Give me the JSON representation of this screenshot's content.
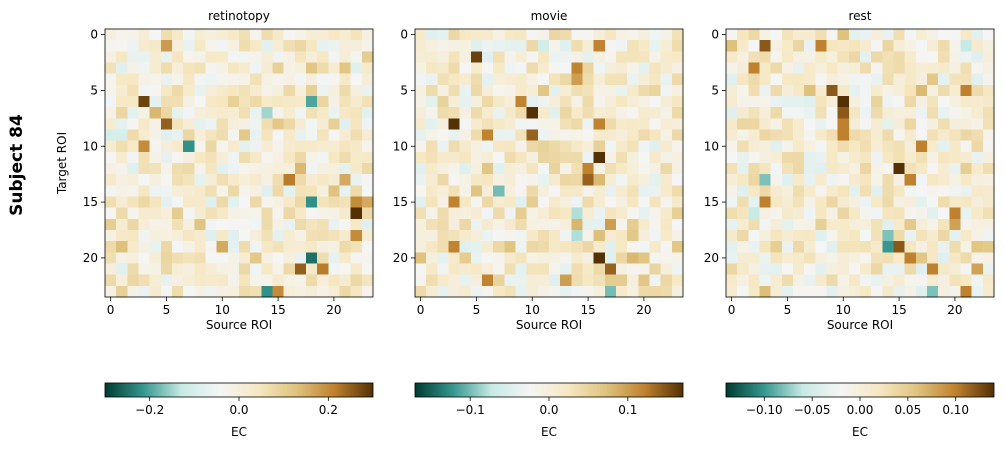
{
  "figure": {
    "suptitle": "Subject 84",
    "cmap_stops": [
      "#003c30",
      "#35978f",
      "#c7eae5",
      "#f5f5f5",
      "#f6e8c3",
      "#dfc27d",
      "#bf812d",
      "#543005"
    ]
  },
  "chart_data": [
    {
      "type": "heatmap",
      "title": "retinotopy",
      "xlabel": "Source ROI",
      "ylabel": "Target ROI",
      "x_ticks": [
        "0",
        "5",
        "10",
        "15",
        "20"
      ],
      "y_ticks": [
        "0",
        "5",
        "10",
        "15",
        "20"
      ],
      "n": 24,
      "seed": 84,
      "vmin": -0.3,
      "vmax": 0.3,
      "colorbar": {
        "label": "EC",
        "ticks": [
          "−0.2",
          "0.0",
          "0.2"
        ],
        "tick_values": [
          -0.2,
          0.0,
          0.2
        ]
      },
      "strong_cells": [
        [
          1,
          5,
          0.18
        ],
        [
          3,
          18,
          0.12
        ],
        [
          3,
          21,
          0.12
        ],
        [
          6,
          3,
          0.28
        ],
        [
          6,
          18,
          -0.2
        ],
        [
          7,
          14,
          -0.15
        ],
        [
          8,
          5,
          0.25
        ],
        [
          9,
          0,
          -0.1
        ],
        [
          9,
          1,
          -0.1
        ],
        [
          10,
          3,
          0.2
        ],
        [
          10,
          7,
          -0.22
        ],
        [
          12,
          17,
          0.14
        ],
        [
          13,
          16,
          0.22
        ],
        [
          13,
          21,
          0.16
        ],
        [
          15,
          18,
          -0.22
        ],
        [
          15,
          22,
          0.2
        ],
        [
          15,
          23,
          0.16
        ],
        [
          16,
          22,
          0.3
        ],
        [
          18,
          22,
          0.2
        ],
        [
          19,
          10,
          0.16
        ],
        [
          20,
          18,
          -0.25
        ],
        [
          21,
          17,
          0.25
        ],
        [
          21,
          19,
          0.22
        ],
        [
          23,
          14,
          -0.22
        ],
        [
          23,
          15,
          0.2
        ]
      ]
    },
    {
      "type": "heatmap",
      "title": "movie",
      "xlabel": "Source ROI",
      "ylabel": "",
      "x_ticks": [
        "0",
        "5",
        "10",
        "15",
        "20"
      ],
      "y_ticks": [
        "0",
        "5",
        "10",
        "15",
        "20"
      ],
      "n": 24,
      "seed": 85,
      "vmin": -0.17,
      "vmax": 0.17,
      "colorbar": {
        "label": "EC",
        "ticks": [
          "−0.1",
          "0.0",
          "0.1"
        ],
        "tick_values": [
          -0.1,
          0.0,
          0.1
        ]
      },
      "strong_cells": [
        [
          1,
          16,
          0.12
        ],
        [
          1,
          11,
          -0.06
        ],
        [
          2,
          5,
          0.16
        ],
        [
          3,
          14,
          0.12
        ],
        [
          4,
          14,
          0.1
        ],
        [
          6,
          9,
          0.12
        ],
        [
          7,
          10,
          0.17
        ],
        [
          8,
          3,
          0.17
        ],
        [
          8,
          16,
          0.12
        ],
        [
          9,
          10,
          0.14
        ],
        [
          9,
          6,
          0.12
        ],
        [
          11,
          16,
          0.17
        ],
        [
          12,
          15,
          0.12
        ],
        [
          13,
          15,
          0.14
        ],
        [
          14,
          7,
          -0.1
        ],
        [
          15,
          3,
          0.12
        ],
        [
          16,
          14,
          -0.08
        ],
        [
          17,
          17,
          0.1
        ],
        [
          18,
          14,
          -0.08
        ],
        [
          19,
          3,
          0.12
        ],
        [
          20,
          16,
          0.17
        ],
        [
          21,
          17,
          0.14
        ],
        [
          22,
          6,
          0.12
        ],
        [
          22,
          13,
          0.1
        ],
        [
          23,
          17,
          -0.1
        ]
      ]
    },
    {
      "type": "heatmap",
      "title": "rest",
      "xlabel": "Source ROI",
      "ylabel": "",
      "x_ticks": [
        "0",
        "5",
        "10",
        "15",
        "20"
      ],
      "y_ticks": [
        "0",
        "5",
        "10",
        "15",
        "20"
      ],
      "n": 24,
      "seed": 86,
      "vmin": -0.14,
      "vmax": 0.14,
      "colorbar": {
        "label": "EC",
        "ticks": [
          "−0.10",
          "−0.05",
          "0.00",
          "0.05",
          "0.10"
        ],
        "tick_values": [
          -0.1,
          -0.05,
          0.0,
          0.05,
          0.1
        ]
      },
      "strong_cells": [
        [
          1,
          3,
          0.12
        ],
        [
          1,
          8,
          0.1
        ],
        [
          1,
          21,
          -0.06
        ],
        [
          3,
          2,
          0.1
        ],
        [
          5,
          9,
          0.12
        ],
        [
          5,
          21,
          0.1
        ],
        [
          6,
          10,
          0.14
        ],
        [
          7,
          10,
          0.12
        ],
        [
          8,
          10,
          0.1
        ],
        [
          9,
          10,
          0.1
        ],
        [
          10,
          17,
          0.1
        ],
        [
          12,
          15,
          0.14
        ],
        [
          13,
          16,
          0.1
        ],
        [
          13,
          3,
          -0.08
        ],
        [
          15,
          3,
          0.1
        ],
        [
          16,
          2,
          -0.06
        ],
        [
          16,
          20,
          0.1
        ],
        [
          17,
          20,
          0.08
        ],
        [
          18,
          14,
          -0.08
        ],
        [
          19,
          14,
          -0.1
        ],
        [
          19,
          15,
          0.12
        ],
        [
          20,
          16,
          0.1
        ],
        [
          21,
          18,
          0.1
        ],
        [
          21,
          22,
          0.08
        ],
        [
          23,
          18,
          -0.08
        ],
        [
          23,
          21,
          0.1
        ]
      ]
    }
  ]
}
